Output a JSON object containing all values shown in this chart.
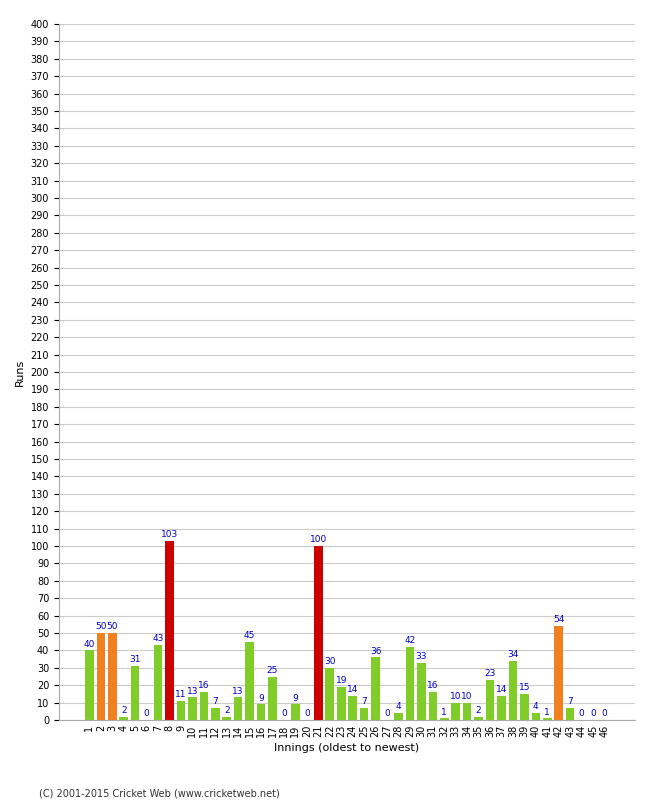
{
  "xlabel": "Innings (oldest to newest)",
  "ylabel": "Runs",
  "footer": "(C) 2001-2015 Cricket Web (www.cricketweb.net)",
  "ylim": [
    0,
    400
  ],
  "ytick_step": 10,
  "innings": [
    1,
    2,
    3,
    4,
    5,
    6,
    7,
    8,
    9,
    10,
    11,
    12,
    13,
    14,
    15,
    16,
    17,
    18,
    19,
    20,
    21,
    22,
    23,
    24,
    25,
    26,
    27,
    28,
    29,
    30,
    31,
    32,
    33,
    34,
    35,
    36,
    37,
    38,
    39,
    40,
    41,
    42,
    43,
    44,
    45,
    46
  ],
  "values": [
    40,
    50,
    50,
    2,
    31,
    0,
    43,
    103,
    11,
    13,
    16,
    7,
    2,
    13,
    45,
    9,
    25,
    0,
    9,
    0,
    100,
    30,
    19,
    14,
    7,
    36,
    0,
    4,
    42,
    33,
    16,
    1,
    10,
    10,
    2,
    23,
    14,
    34,
    15,
    4,
    1,
    54,
    7,
    0,
    0,
    0
  ],
  "colors": [
    "#80cc28",
    "#f08020",
    "#f08020",
    "#80cc28",
    "#80cc28",
    "#80cc28",
    "#80cc28",
    "#cc0000",
    "#80cc28",
    "#80cc28",
    "#80cc28",
    "#80cc28",
    "#80cc28",
    "#80cc28",
    "#80cc28",
    "#80cc28",
    "#80cc28",
    "#80cc28",
    "#80cc28",
    "#80cc28",
    "#cc0000",
    "#80cc28",
    "#80cc28",
    "#80cc28",
    "#80cc28",
    "#80cc28",
    "#80cc28",
    "#80cc28",
    "#80cc28",
    "#80cc28",
    "#80cc28",
    "#80cc28",
    "#80cc28",
    "#80cc28",
    "#80cc28",
    "#80cc28",
    "#80cc28",
    "#80cc28",
    "#80cc28",
    "#80cc28",
    "#80cc28",
    "#f08020",
    "#80cc28",
    "#80cc28",
    "#80cc28",
    "#80cc28"
  ],
  "background_color": "#ffffff",
  "grid_color": "#cccccc",
  "label_color": "#0000cc",
  "label_fontsize": 6.5,
  "axis_fontsize": 7,
  "footer_fontsize": 7,
  "bar_width": 0.75
}
